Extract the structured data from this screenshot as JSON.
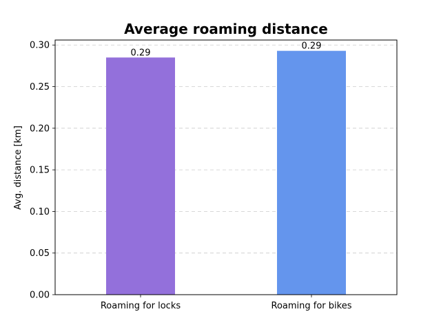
{
  "chart_data": {
    "type": "bar",
    "title": "Average roaming distance",
    "xlabel": "",
    "ylabel": "Avg. distance [km]",
    "categories": [
      "Roaming for locks",
      "Roaming for bikes"
    ],
    "values": [
      0.285,
      0.293
    ],
    "value_labels": [
      "0.29",
      "0.29"
    ],
    "colors": [
      "#9370DB",
      "#6495ED"
    ],
    "ylim": [
      0,
      0.306
    ],
    "yticks": [
      0.0,
      0.05,
      0.1,
      0.15,
      0.2,
      0.25,
      0.3
    ],
    "ytick_labels": [
      "0.00",
      "0.05",
      "0.10",
      "0.15",
      "0.20",
      "0.25",
      "0.30"
    ],
    "grid": "y-axis dashed",
    "legend": "none"
  }
}
